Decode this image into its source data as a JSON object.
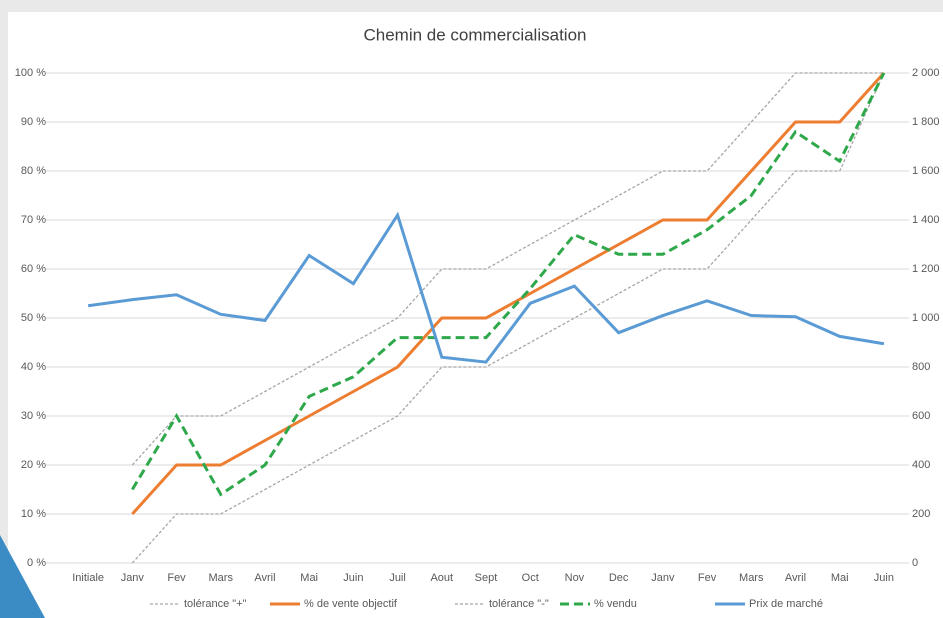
{
  "chart_data": {
    "type": "line",
    "title": "Chemin de commercialisation",
    "categories": [
      "Initiale",
      "Janv",
      "Fev",
      "Mars",
      "Avril",
      "Mai",
      "Juin",
      "Juil",
      "Aout",
      "Sept",
      "Oct",
      "Nov",
      "Dec",
      "Janv",
      "Fev",
      "Mars",
      "Avril",
      "Mai",
      "Juin"
    ],
    "series": [
      {
        "name": "tolérance \"+\"",
        "color": "#a6a6a6",
        "line_style": "dotted",
        "values": [
          null,
          20,
          30,
          30,
          35,
          40,
          45,
          50,
          60,
          60,
          65,
          70,
          75,
          80,
          80,
          90,
          100,
          100,
          100
        ]
      },
      {
        "name": "% de vente objectif",
        "color": "#ed7d31",
        "line_style": "solid",
        "values": [
          null,
          10,
          20,
          20,
          25,
          30,
          35,
          40,
          50,
          50,
          55,
          60,
          65,
          70,
          70,
          80,
          90,
          90,
          100
        ]
      },
      {
        "name": "tolérance \"-\"",
        "color": "#a6a6a6",
        "line_style": "dotted",
        "values": [
          null,
          0,
          10,
          10,
          15,
          20,
          25,
          30,
          40,
          40,
          45,
          50,
          55,
          60,
          60,
          70,
          80,
          80,
          100
        ]
      },
      {
        "name": "% vendu",
        "color": "#2ea84a",
        "line_style": "dashed",
        "values": [
          null,
          15,
          30,
          14,
          20,
          34,
          38,
          46,
          46,
          46,
          56,
          67,
          63,
          63,
          68,
          75,
          88,
          82,
          100
        ]
      },
      {
        "name": "Prix de marché",
        "color": "#5b9bd5",
        "line_style": "solid",
        "axis": "y2",
        "values": [
          1050,
          1075,
          1095,
          1015,
          990,
          1255,
          1140,
          1420,
          840,
          820,
          1060,
          1130,
          940,
          1010,
          1070,
          1010,
          1005,
          925,
          895
        ]
      }
    ],
    "ylim": [
      0,
      100
    ],
    "yticks": [
      {
        "value": 0,
        "label": "0 %"
      },
      {
        "value": 10,
        "label": "10 %"
      },
      {
        "value": 20,
        "label": "20 %"
      },
      {
        "value": 30,
        "label": "30 %"
      },
      {
        "value": 40,
        "label": "40 %"
      },
      {
        "value": 50,
        "label": "50 %"
      },
      {
        "value": 60,
        "label": "60 %"
      },
      {
        "value": 70,
        "label": "70 %"
      },
      {
        "value": 80,
        "label": "80 %"
      },
      {
        "value": 90,
        "label": "90 %"
      },
      {
        "value": 100,
        "label": "100 %"
      }
    ],
    "y2lim": [
      0,
      2000
    ],
    "y2ticks": [
      0,
      200,
      400,
      600,
      800,
      {
        "value": 1000,
        "label": "1 000"
      },
      {
        "value": 1200,
        "label": "1 200"
      },
      {
        "value": 1400,
        "label": "1 400"
      },
      {
        "value": 1600,
        "label": "1 600"
      },
      {
        "value": 1800,
        "label": "1 800"
      },
      {
        "value": 2000,
        "label": "2 000"
      }
    ],
    "grid": true,
    "legend": "bottom"
  }
}
